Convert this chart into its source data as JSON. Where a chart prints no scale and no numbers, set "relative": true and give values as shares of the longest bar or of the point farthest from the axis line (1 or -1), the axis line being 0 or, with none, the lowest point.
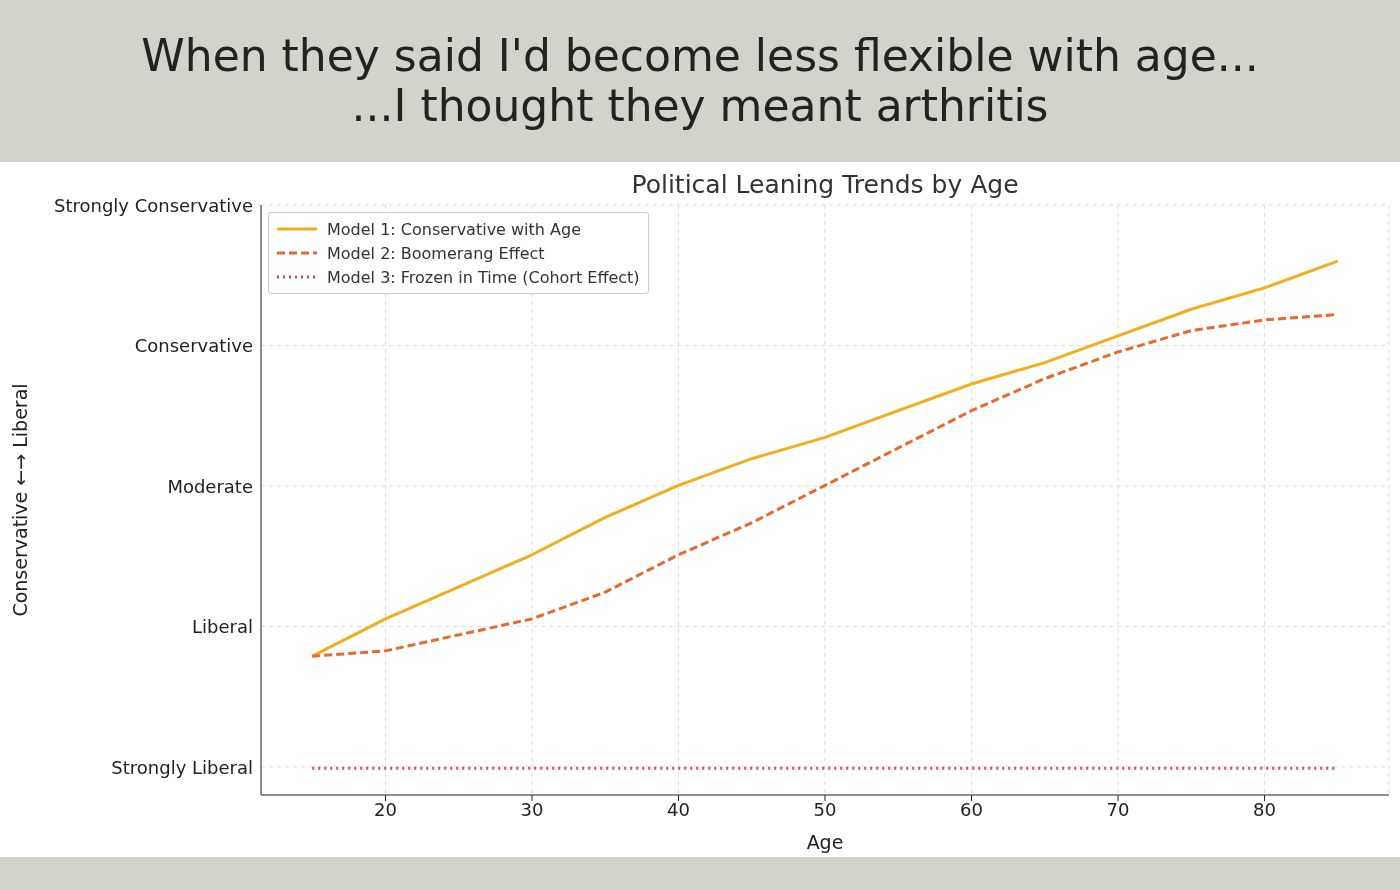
{
  "chart_data": {
    "type": "line",
    "title": "When they said I'd become less flexible with age...\n...I thought they meant arthritis",
    "subtitle": "Political Leaning Trends by Age",
    "xlabel": "Age",
    "annotations": [
      "Strongly Liberal",
      "Liberal",
      "Moderate",
      "Conservative",
      "Strongly Conservative",
      "Conservative ←→ Liberal"
    ],
    "relative": true,
    "xlim": [
      11.5,
      88.5
    ],
    "xticks": [
      20,
      30,
      40,
      50,
      60,
      70,
      80
    ],
    "x": [
      15,
      20,
      25,
      30,
      35,
      40,
      45,
      50,
      55,
      60,
      65,
      70,
      75,
      80,
      85
    ],
    "series": [
      {
        "name": "Model 1: Conservative with Age",
        "color": "#f2ae1c",
        "line_style": "solid",
        "values": [
          0.26,
          0.33,
          0.39,
          0.45,
          0.52,
          0.58,
          0.63,
          0.67,
          0.72,
          0.77,
          0.81,
          0.86,
          0.91,
          0.95,
          1
        ]
      },
      {
        "name": "Model 2: Boomerang Effect",
        "color": "#e8692c",
        "line_style": "dashed",
        "values": [
          0.26,
          0.27,
          0.3,
          0.33,
          0.38,
          0.45,
          0.51,
          0.58,
          0.65,
          0.72,
          0.78,
          0.83,
          0.87,
          0.89,
          0.9
        ]
      },
      {
        "name": "Model 3: Frozen in Time (Cohort Effect)",
        "color": "#e0405a",
        "line_style": "dotted",
        "values": [
          0.05,
          0.05,
          0.05,
          0.05,
          0.05,
          0.05,
          0.05,
          0.05,
          0.05,
          0.05,
          0.05,
          0.05,
          0.05,
          0.05,
          0.05
        ]
      }
    ],
    "grid": true,
    "legend": "top left",
    "marker": "none"
  }
}
